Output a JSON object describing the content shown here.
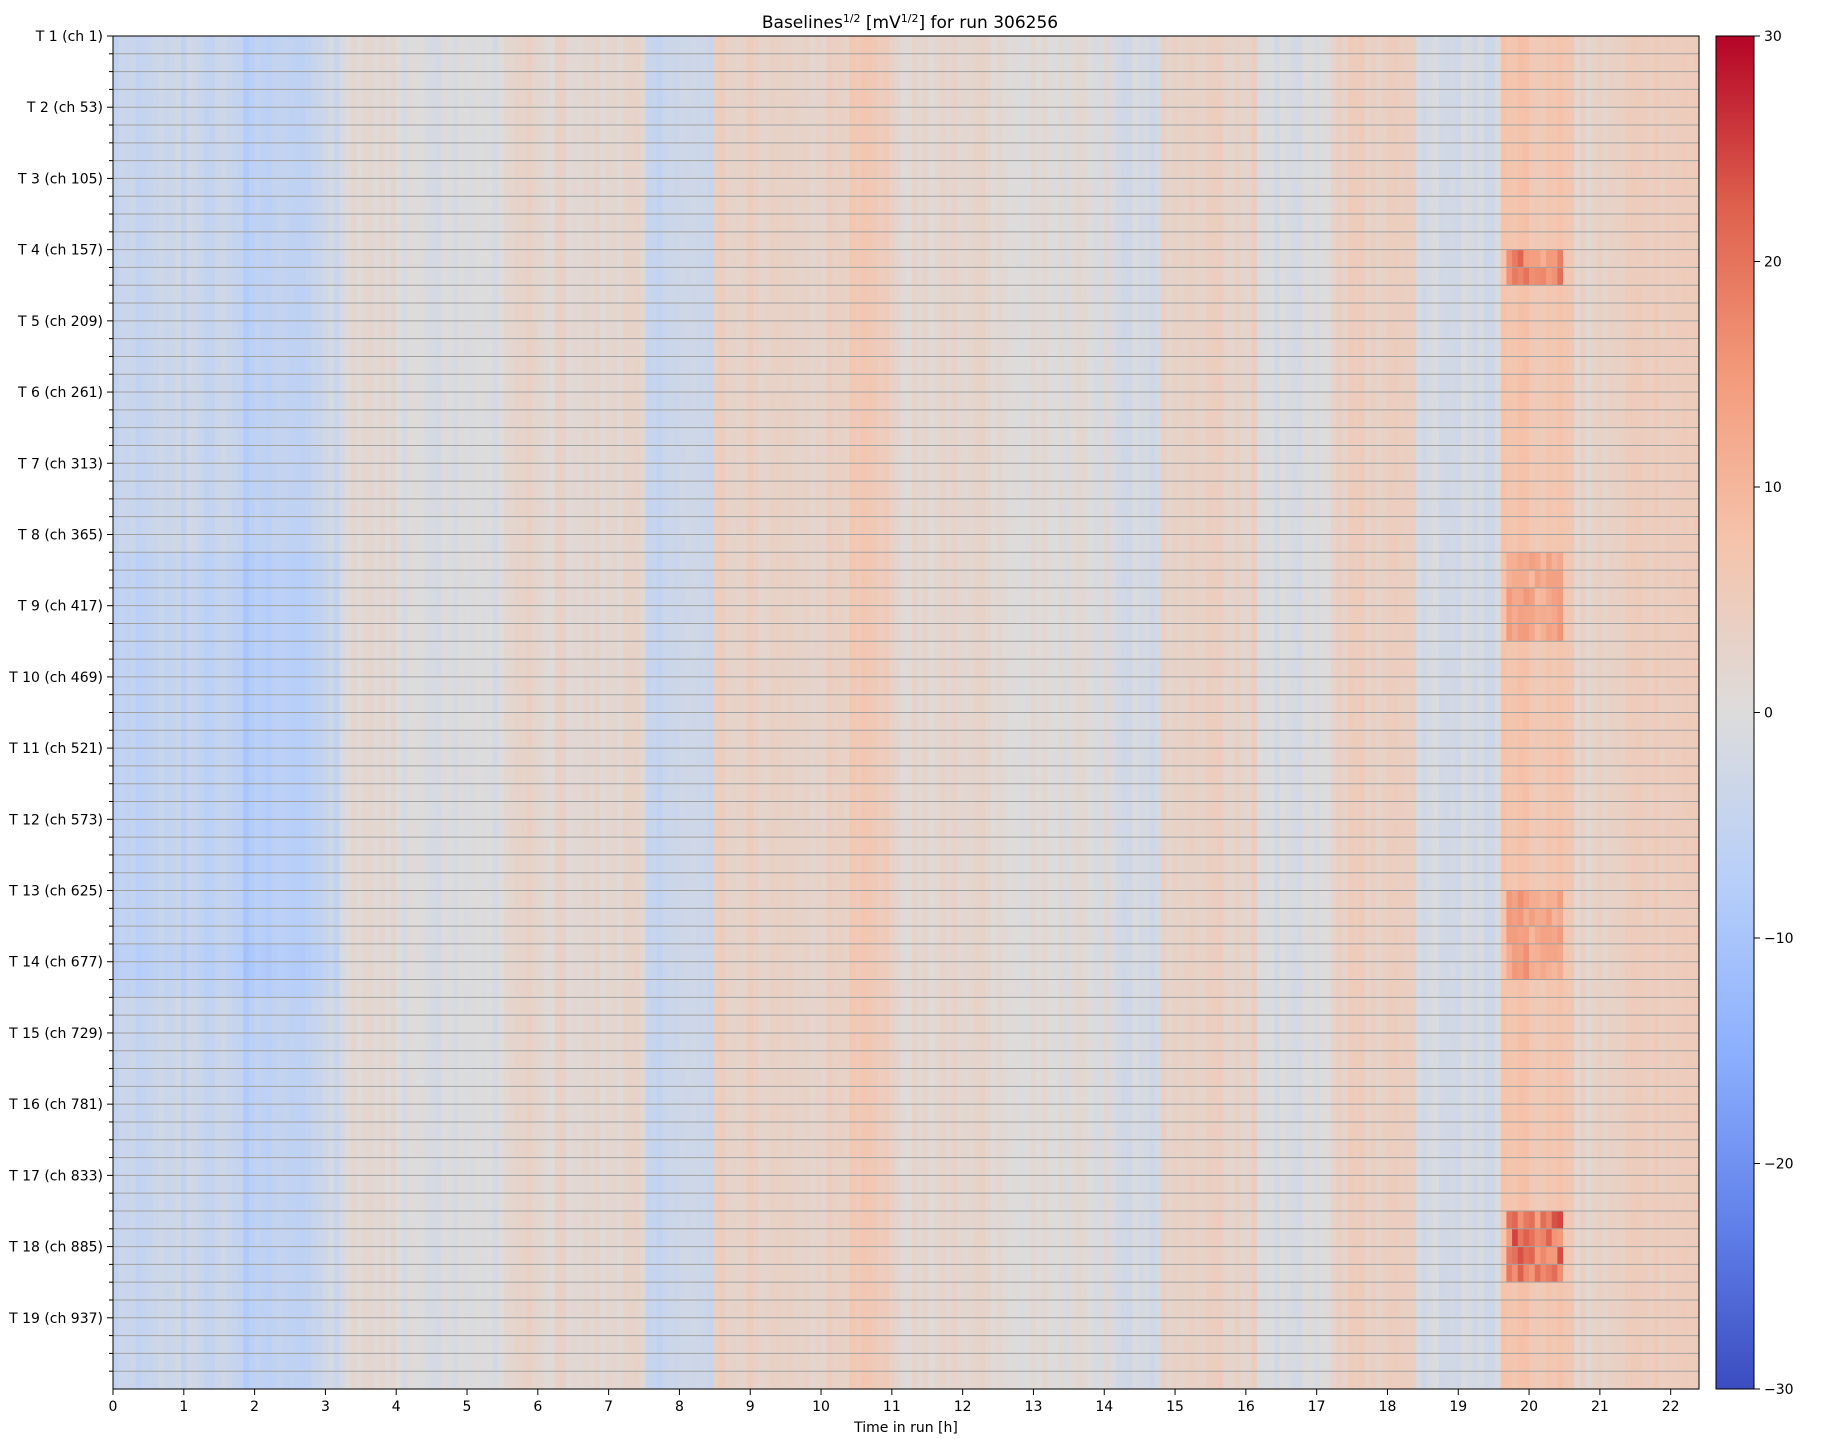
{
  "chart_data": {
    "type": "heatmap",
    "title": {
      "prefix": "Baselines",
      "sup1": "1/2",
      "middle": " [mV",
      "sup2": "1/2",
      "suffix": "] for run 306256"
    },
    "xlabel": "Time in run [h]",
    "ylabel": "",
    "x_range": [
      0,
      22.4
    ],
    "x_ticks": [
      0,
      1,
      2,
      3,
      4,
      5,
      6,
      7,
      8,
      9,
      10,
      11,
      12,
      13,
      14,
      15,
      16,
      17,
      18,
      19,
      20,
      21,
      22
    ],
    "y_labels": [
      "T 1 (ch 1)",
      "T 2 (ch 53)",
      "T 3 (ch 105)",
      "T 4 (ch 157)",
      "T 5 (ch 209)",
      "T 6 (ch 261)",
      "T 7 (ch 313)",
      "T 8 (ch 365)",
      "T 9 (ch 417)",
      "T 10 (ch 469)",
      "T 11 (ch 521)",
      "T 12 (ch 573)",
      "T 13 (ch 625)",
      "T 14 (ch 677)",
      "T 15 (ch 729)",
      "T 16 (ch 781)",
      "T 17 (ch 833)",
      "T 18 (ch 885)",
      "T 19 (ch 937)"
    ],
    "channels_per_label": 52,
    "total_channels": 988,
    "minor_ticks_per_label": 4,
    "colorbar": {
      "colormap": "coolwarm",
      "range": [
        -30,
        30
      ],
      "ticks": [
        30,
        20,
        10,
        0,
        -10,
        -20,
        -30
      ],
      "tick_labels": [
        "30",
        "20",
        "10",
        "0",
        "−10",
        "−20",
        "−30"
      ]
    },
    "column_profile": [
      [
        0,
        1.8,
        -4
      ],
      [
        1.8,
        2.0,
        -7
      ],
      [
        2.0,
        3.0,
        -5.5
      ],
      [
        3.0,
        3.3,
        -3
      ],
      [
        3.3,
        4.0,
        2
      ],
      [
        4.0,
        5.5,
        -1
      ],
      [
        5.5,
        6.0,
        3
      ],
      [
        6.0,
        7.5,
        2
      ],
      [
        7.5,
        8.5,
        -4
      ],
      [
        8.5,
        10.4,
        3.5
      ],
      [
        10.4,
        11.0,
        6
      ],
      [
        11.0,
        12.6,
        2
      ],
      [
        12.6,
        14.2,
        0.5
      ],
      [
        14.2,
        14.8,
        -1.5
      ],
      [
        14.8,
        16.2,
        3.5
      ],
      [
        16.2,
        17.2,
        -1
      ],
      [
        17.2,
        18.4,
        4
      ],
      [
        18.4,
        19.6,
        -1.5
      ],
      [
        19.6,
        20.6,
        6.5
      ],
      [
        20.6,
        21.0,
        3
      ],
      [
        21.0,
        22.4,
        4
      ]
    ],
    "hot_spots": [
      {
        "x": [
          19.7,
          20.5
        ],
        "channels": [
          155,
          180
        ],
        "value": 14
      },
      {
        "x": [
          19.7,
          20.5
        ],
        "channels": [
          860,
          905
        ],
        "value": 18
      },
      {
        "x": [
          19.7,
          20.5
        ],
        "channels": [
          625,
          690
        ],
        "value": 9
      },
      {
        "x": [
          19.7,
          20.5
        ],
        "channels": [
          380,
          440
        ],
        "value": 8
      }
    ],
    "cold_spots": [
      {
        "x": [
          0.0,
          3.2
        ],
        "channels": [
          372,
          700
        ],
        "value": -8
      },
      {
        "x": [
          0.0,
          3.2
        ],
        "channels": [
          660,
          690
        ],
        "value": -10
      }
    ],
    "grid": "horizontal-every-13-channels"
  }
}
